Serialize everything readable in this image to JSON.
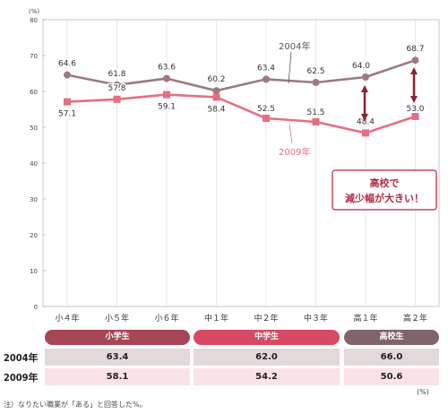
{
  "chart_data": {
    "type": "line",
    "y_unit": "(%)",
    "ylim": [
      0,
      80
    ],
    "yticks": [
      0,
      10,
      20,
      30,
      40,
      50,
      60,
      70,
      80
    ],
    "grid": "vertical",
    "categories": [
      "小４年",
      "小５年",
      "小６年",
      "中１年",
      "中２年",
      "中３年",
      "高１年",
      "高２年"
    ],
    "series": [
      {
        "name": "2004年",
        "color": "#9c7a7f",
        "values": [
          64.6,
          61.8,
          63.6,
          60.2,
          63.4,
          62.5,
          64.0,
          68.7
        ],
        "labels": [
          "64.6",
          "61.8",
          "63.6",
          "60.2",
          "63.4",
          "62.5",
          "64.0",
          "68.7"
        ]
      },
      {
        "name": "2009年",
        "color": "#e46f83",
        "values": [
          57.1,
          57.8,
          59.1,
          58.4,
          52.5,
          51.5,
          48.4,
          53.0
        ],
        "labels": [
          "57.1",
          "57.8",
          "59.1",
          "58.4",
          "52.5",
          "51.5",
          "48.4",
          "53.0"
        ]
      }
    ],
    "annotation": "高校で\n減少幅が大きい！"
  },
  "table": {
    "groups": [
      {
        "label": "小学生",
        "color": "#a74656"
      },
      {
        "label": "中学生",
        "color": "#d84a63"
      },
      {
        "label": "高校生",
        "color": "#806469"
      }
    ],
    "rows": [
      {
        "label": "2004年",
        "values": [
          "63.4",
          "62.0",
          "66.0"
        ]
      },
      {
        "label": "2009年",
        "values": [
          "58.1",
          "54.2",
          "50.6"
        ]
      }
    ],
    "unit": "(%)"
  },
  "note": "注）なりたい職業が「ある」と回答した%。"
}
